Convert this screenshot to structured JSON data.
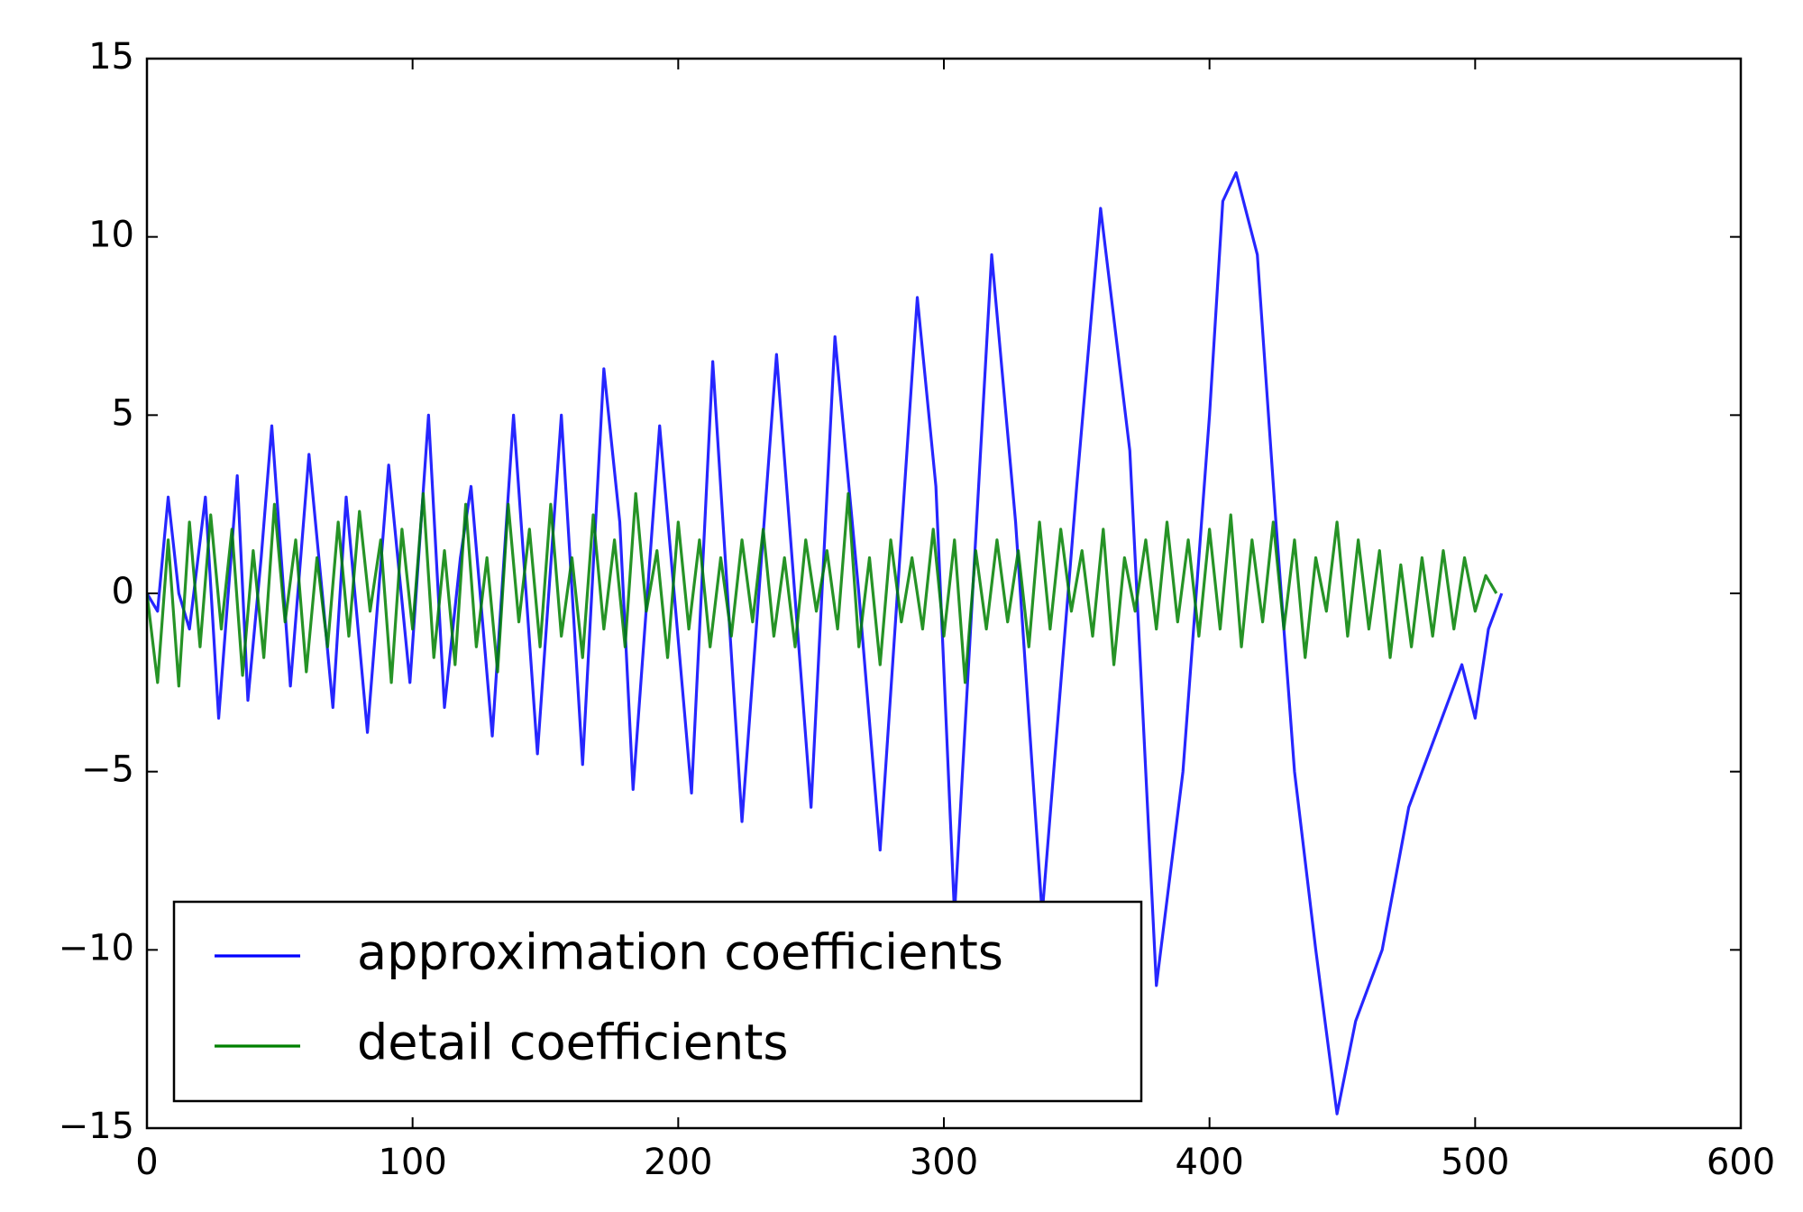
{
  "chart_data": {
    "type": "line",
    "xlim": [
      0,
      600
    ],
    "xticks": [
      0,
      100,
      200,
      300,
      400,
      500,
      600
    ],
    "ylim": [
      -15,
      15
    ],
    "yticks": [
      {
        "value": -15,
        "label": "−15"
      },
      {
        "value": -10,
        "label": "−10"
      },
      {
        "value": -5,
        "label": "−5"
      },
      0,
      5,
      10,
      15
    ],
    "legend": "lower left",
    "series": [
      {
        "name": "approximation coefficients",
        "color": "#0000ff",
        "x": [
          0,
          4,
          8,
          12,
          16,
          22,
          27,
          34,
          38,
          43,
          47,
          54,
          61,
          66,
          70,
          75,
          83,
          91,
          99,
          106,
          112,
          118,
          122,
          130,
          138,
          147,
          156,
          164,
          172,
          178,
          183,
          193,
          205,
          213,
          224,
          237,
          250,
          259,
          268,
          276,
          290,
          297,
          304,
          318,
          327,
          337,
          350,
          359,
          370,
          380,
          390,
          400,
          405,
          410,
          418,
          425,
          432,
          440,
          448,
          455,
          465,
          475,
          485,
          495,
          500,
          505,
          510
        ],
        "values": [
          0,
          -0.5,
          2.7,
          0,
          -1,
          2.7,
          -3.5,
          3.3,
          -3,
          1,
          4.7,
          -2.6,
          3.9,
          0,
          -3.2,
          2.7,
          -3.9,
          3.6,
          -2.5,
          5,
          -3.2,
          1,
          3.0,
          -4,
          5.0,
          -4.5,
          5.0,
          -4.8,
          6.3,
          2,
          -5.5,
          4.7,
          -5.6,
          6.5,
          -6.4,
          6.7,
          -6,
          7.2,
          0,
          -7.2,
          8.3,
          3,
          -9,
          9.5,
          2,
          -9,
          3,
          10.8,
          4,
          -11,
          -5,
          5,
          11,
          11.8,
          9.5,
          2,
          -5,
          -10,
          -14.6,
          -12,
          -10,
          -6,
          -4,
          -2,
          -3.5,
          -1,
          0
        ]
      },
      {
        "name": "detail coefficients",
        "color": "#008000",
        "x": [
          0,
          4,
          8,
          12,
          16,
          20,
          24,
          28,
          32,
          36,
          40,
          44,
          48,
          52,
          56,
          60,
          64,
          68,
          72,
          76,
          80,
          84,
          88,
          92,
          96,
          100,
          104,
          108,
          112,
          116,
          120,
          124,
          128,
          132,
          136,
          140,
          144,
          148,
          152,
          156,
          160,
          164,
          168,
          172,
          176,
          180,
          184,
          188,
          192,
          196,
          200,
          204,
          208,
          212,
          216,
          220,
          224,
          228,
          232,
          236,
          240,
          244,
          248,
          252,
          256,
          260,
          264,
          268,
          272,
          276,
          280,
          284,
          288,
          292,
          296,
          300,
          304,
          308,
          312,
          316,
          320,
          324,
          328,
          332,
          336,
          340,
          344,
          348,
          352,
          356,
          360,
          364,
          368,
          372,
          376,
          380,
          384,
          388,
          392,
          396,
          400,
          404,
          408,
          412,
          416,
          420,
          424,
          428,
          432,
          436,
          440,
          444,
          448,
          452,
          456,
          460,
          464,
          468,
          472,
          476,
          480,
          484,
          488,
          492,
          496,
          500,
          504,
          508
        ],
        "values": [
          0,
          -2.5,
          1.5,
          -2.6,
          2,
          -1.5,
          2.2,
          -1,
          1.8,
          -2.3,
          1.2,
          -1.8,
          2.5,
          -0.8,
          1.5,
          -2.2,
          1.0,
          -1.5,
          2.0,
          -1.2,
          2.3,
          -0.5,
          1.5,
          -2.5,
          1.8,
          -1.0,
          2.8,
          -1.8,
          1.2,
          -2.0,
          2.5,
          -1.5,
          1.0,
          -2.2,
          2.5,
          -0.8,
          1.8,
          -1.5,
          2.5,
          -1.2,
          1.0,
          -1.8,
          2.2,
          -1.0,
          1.5,
          -1.5,
          2.8,
          -0.5,
          1.2,
          -1.8,
          2.0,
          -1.0,
          1.5,
          -1.5,
          1.0,
          -1.2,
          1.5,
          -0.8,
          1.8,
          -1.2,
          1.0,
          -1.5,
          1.5,
          -0.5,
          1.2,
          -1.0,
          2.8,
          -1.5,
          1.0,
          -2.0,
          1.5,
          -0.8,
          1.0,
          -1.0,
          1.8,
          -1.2,
          1.5,
          -2.5,
          1.2,
          -1.0,
          1.5,
          -0.8,
          1.2,
          -1.5,
          2.0,
          -1.0,
          1.8,
          -0.5,
          1.2,
          -1.2,
          1.8,
          -2.0,
          1.0,
          -0.5,
          1.5,
          -1.0,
          2.0,
          -0.8,
          1.5,
          -1.2,
          1.8,
          -1.0,
          2.2,
          -1.5,
          1.5,
          -0.8,
          2.0,
          -1.0,
          1.5,
          -1.8,
          1.0,
          -0.5,
          2.0,
          -1.2,
          1.5,
          -1.0,
          1.2,
          -1.8,
          0.8,
          -1.5,
          1.0,
          -1.2,
          1.2,
          -1.0,
          1.0,
          -0.5,
          0.5,
          0
        ]
      }
    ]
  }
}
